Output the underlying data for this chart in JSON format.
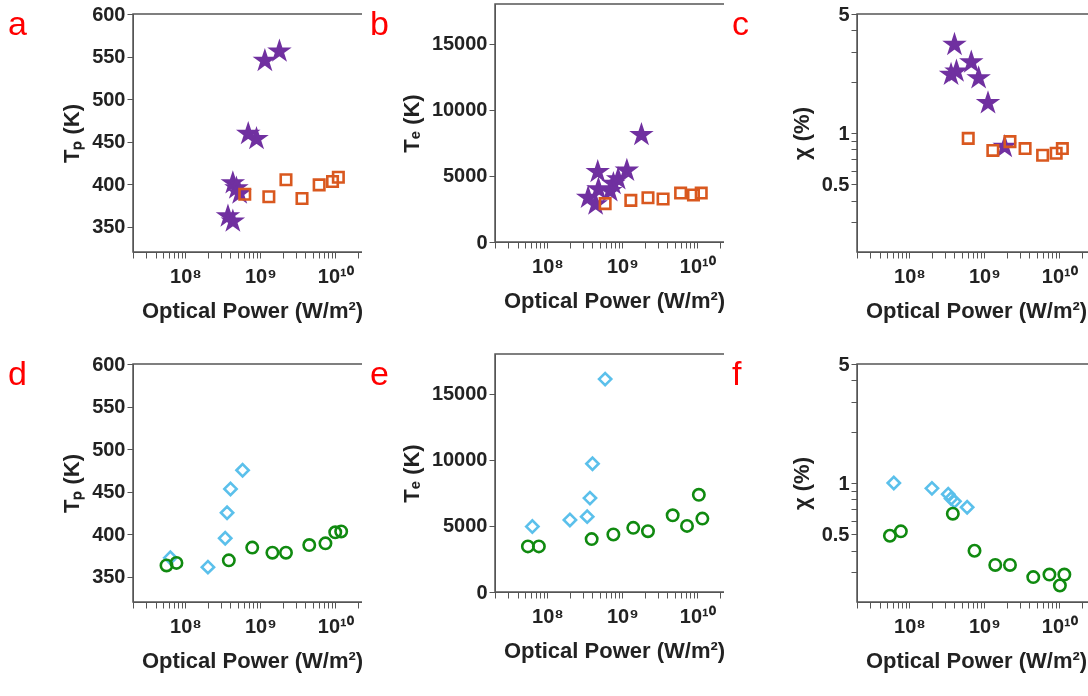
{
  "chart_data": [
    {
      "type": "scatter",
      "title": "a",
      "xlabel": "Optical Power (W/m²)",
      "ylabel": "Tₚ (K)",
      "log": "x",
      "xlim": [
        20000000.0,
        30000000000.0
      ],
      "xticks": [
        {
          "value": 20000000.0,
          "label": null
        },
        {
          "value": 30000000.0,
          "label": null
        },
        {
          "value": 40000000.0,
          "label": null
        },
        {
          "value": 50000000.0,
          "label": null
        },
        {
          "value": 60000000.0,
          "label": null
        },
        {
          "value": 70000000.0,
          "label": null
        },
        {
          "value": 80000000.0,
          "label": null
        },
        {
          "value": 90000000.0,
          "label": null
        },
        {
          "value": 100000000.0,
          "label": "10⁸"
        },
        {
          "value": 200000000.0,
          "label": null
        },
        {
          "value": 300000000.0,
          "label": null
        },
        {
          "value": 400000000.0,
          "label": null
        },
        {
          "value": 500000000.0,
          "label": null
        },
        {
          "value": 600000000.0,
          "label": null
        },
        {
          "value": 700000000.0,
          "label": null
        },
        {
          "value": 800000000.0,
          "label": null
        },
        {
          "value": 900000000.0,
          "label": null
        },
        {
          "value": 1000000000.0,
          "label": "10⁹"
        },
        {
          "value": 2000000000.0,
          "label": null
        },
        {
          "value": 3000000000.0,
          "label": null
        },
        {
          "value": 4000000000.0,
          "label": null
        },
        {
          "value": 5000000000.0,
          "label": null
        },
        {
          "value": 6000000000.0,
          "label": null
        },
        {
          "value": 7000000000.0,
          "label": null
        },
        {
          "value": 8000000000.0,
          "label": null
        },
        {
          "value": 9000000000.0,
          "label": null
        },
        {
          "value": 10000000000.0,
          "label": "10¹⁰"
        },
        {
          "value": 20000000000.0,
          "label": null
        },
        {
          "value": 30000000000.0,
          "label": null
        }
      ],
      "ylim": [
        320,
        600
      ],
      "yticks": [
        350,
        400,
        450,
        500,
        550,
        600
      ],
      "series": [
        {
          "color": "#7030a0",
          "marker": "star",
          "x": [
            1150000000.0,
            1800000000.0,
            690000000.0,
            890000000.0,
            430000000.0,
            480000000.0,
            530000000.0,
            370000000.0,
            430000000.0
          ],
          "values": [
            545,
            556,
            459,
            453,
            401,
            395,
            389,
            362,
            356
          ]
        },
        {
          "color": "#d9581f",
          "marker": "square",
          "x": [
            620000000.0,
            1300000000.0,
            2200000000.0,
            3600000000.0,
            6100000000.0,
            9200000000.0,
            11000000000.0
          ],
          "values": [
            388,
            385,
            405,
            383,
            399,
            403,
            408
          ]
        }
      ]
    },
    {
      "type": "scatter",
      "title": "b",
      "xlabel": "Optical Power (W/m²)",
      "ylabel": "Tₑ (K)",
      "log": "x",
      "xlim": [
        20000000.0,
        30000000000.0
      ],
      "xticks": [
        {
          "value": 20000000.0,
          "label": null
        },
        {
          "value": 30000000.0,
          "label": null
        },
        {
          "value": 40000000.0,
          "label": null
        },
        {
          "value": 50000000.0,
          "label": null
        },
        {
          "value": 60000000.0,
          "label": null
        },
        {
          "value": 70000000.0,
          "label": null
        },
        {
          "value": 80000000.0,
          "label": null
        },
        {
          "value": 90000000.0,
          "label": null
        },
        {
          "value": 100000000.0,
          "label": "10⁸"
        },
        {
          "value": 200000000.0,
          "label": null
        },
        {
          "value": 300000000.0,
          "label": null
        },
        {
          "value": 400000000.0,
          "label": null
        },
        {
          "value": 500000000.0,
          "label": null
        },
        {
          "value": 600000000.0,
          "label": null
        },
        {
          "value": 700000000.0,
          "label": null
        },
        {
          "value": 800000000.0,
          "label": null
        },
        {
          "value": 900000000.0,
          "label": null
        },
        {
          "value": 1000000000.0,
          "label": "10⁹"
        },
        {
          "value": 2000000000.0,
          "label": null
        },
        {
          "value": 3000000000.0,
          "label": null
        },
        {
          "value": 4000000000.0,
          "label": null
        },
        {
          "value": 5000000000.0,
          "label": null
        },
        {
          "value": 6000000000.0,
          "label": null
        },
        {
          "value": 7000000000.0,
          "label": null
        },
        {
          "value": 8000000000.0,
          "label": null
        },
        {
          "value": 9000000000.0,
          "label": null
        },
        {
          "value": 10000000000.0,
          "label": "10¹⁰"
        },
        {
          "value": 20000000000.0,
          "label": null
        },
        {
          "value": 30000000000.0,
          "label": null
        }
      ],
      "ylim": [
        0,
        18000
      ],
      "yticks": [
        0,
        5000,
        10000,
        15000
      ],
      "series": [
        {
          "color": "#7030a0",
          "marker": "star",
          "x": [
            1800000000.0,
            470000000.0,
            1150000000.0,
            880000000.0,
            760000000.0,
            690000000.0,
            480000000.0,
            350000000.0,
            440000000.0
          ],
          "values": [
            8100,
            5300,
            5400,
            4750,
            4400,
            3850,
            4000,
            3350,
            2850
          ]
        },
        {
          "color": "#d9581f",
          "marker": "square",
          "x": [
            590000000.0,
            1300000000.0,
            2200000000.0,
            3500000000.0,
            6000000000.0,
            8900000000.0,
            11300000000.0
          ],
          "values": [
            2900,
            3150,
            3350,
            3250,
            3700,
            3550,
            3700
          ]
        }
      ]
    },
    {
      "type": "scatter",
      "title": "c",
      "xlabel": "Optical Power (W/m²)",
      "ylabel": "χ (%)",
      "log": "xy",
      "xlim": [
        20000000.0,
        30000000000.0
      ],
      "xticks": [
        {
          "value": 20000000.0,
          "label": null
        },
        {
          "value": 30000000.0,
          "label": null
        },
        {
          "value": 40000000.0,
          "label": null
        },
        {
          "value": 50000000.0,
          "label": null
        },
        {
          "value": 60000000.0,
          "label": null
        },
        {
          "value": 70000000.0,
          "label": null
        },
        {
          "value": 80000000.0,
          "label": null
        },
        {
          "value": 90000000.0,
          "label": null
        },
        {
          "value": 100000000.0,
          "label": "10⁸"
        },
        {
          "value": 200000000.0,
          "label": null
        },
        {
          "value": 300000000.0,
          "label": null
        },
        {
          "value": 400000000.0,
          "label": null
        },
        {
          "value": 500000000.0,
          "label": null
        },
        {
          "value": 600000000.0,
          "label": null
        },
        {
          "value": 700000000.0,
          "label": null
        },
        {
          "value": 800000000.0,
          "label": null
        },
        {
          "value": 900000000.0,
          "label": null
        },
        {
          "value": 1000000000.0,
          "label": "10⁹"
        },
        {
          "value": 2000000000.0,
          "label": null
        },
        {
          "value": 3000000000.0,
          "label": null
        },
        {
          "value": 4000000000.0,
          "label": null
        },
        {
          "value": 5000000000.0,
          "label": null
        },
        {
          "value": 6000000000.0,
          "label": null
        },
        {
          "value": 7000000000.0,
          "label": null
        },
        {
          "value": 8000000000.0,
          "label": null
        },
        {
          "value": 9000000000.0,
          "label": null
        },
        {
          "value": 10000000000.0,
          "label": "10¹⁰"
        },
        {
          "value": 20000000000.0,
          "label": null
        },
        {
          "value": 30000000000.0,
          "label": null
        }
      ],
      "ylim": [
        0.2,
        5
      ],
      "yticks": [
        {
          "value": 0.3,
          "label": null
        },
        {
          "value": 0.4,
          "label": null
        },
        0.5,
        {
          "value": 0.6,
          "label": null
        },
        {
          "value": 0.7,
          "label": null
        },
        {
          "value": 0.8,
          "label": null
        },
        {
          "value": 0.9,
          "label": null
        },
        1,
        {
          "value": 2,
          "label": null
        },
        {
          "value": 3,
          "label": null
        },
        {
          "value": 4,
          "label": null
        },
        5
      ],
      "series": [
        {
          "color": "#7030a0",
          "marker": "star",
          "x": [
            400000000.0,
            360000000.0,
            670000000.0,
            840000000.0,
            1120000000.0,
            1870000000.0,
            425000000.0
          ],
          "values": [
            3.3,
            2.2,
            2.6,
            2.1,
            1.5,
            0.83,
            2.3
          ]
        },
        {
          "color": "#d9581f",
          "marker": "square",
          "x": [
            610000000.0,
            1300000000.0,
            2200000000.0,
            3500000000.0,
            6000000000.0,
            9100000000.0,
            11000000000.0
          ],
          "values": [
            0.93,
            0.79,
            0.89,
            0.81,
            0.74,
            0.76,
            0.81
          ]
        }
      ]
    },
    {
      "type": "scatter",
      "title": "d",
      "xlabel": "Optical Power (W/m²)",
      "ylabel": "Tₚ (K)",
      "log": "x",
      "xlim": [
        20000000.0,
        30000000000.0
      ],
      "xticks": [
        {
          "value": 20000000.0,
          "label": null
        },
        {
          "value": 30000000.0,
          "label": null
        },
        {
          "value": 40000000.0,
          "label": null
        },
        {
          "value": 50000000.0,
          "label": null
        },
        {
          "value": 60000000.0,
          "label": null
        },
        {
          "value": 70000000.0,
          "label": null
        },
        {
          "value": 80000000.0,
          "label": null
        },
        {
          "value": 90000000.0,
          "label": null
        },
        {
          "value": 100000000.0,
          "label": "10⁸"
        },
        {
          "value": 200000000.0,
          "label": null
        },
        {
          "value": 300000000.0,
          "label": null
        },
        {
          "value": 400000000.0,
          "label": null
        },
        {
          "value": 500000000.0,
          "label": null
        },
        {
          "value": 600000000.0,
          "label": null
        },
        {
          "value": 700000000.0,
          "label": null
        },
        {
          "value": 800000000.0,
          "label": null
        },
        {
          "value": 900000000.0,
          "label": null
        },
        {
          "value": 1000000000.0,
          "label": "10⁹"
        },
        {
          "value": 2000000000.0,
          "label": null
        },
        {
          "value": 3000000000.0,
          "label": null
        },
        {
          "value": 4000000000.0,
          "label": null
        },
        {
          "value": 5000000000.0,
          "label": null
        },
        {
          "value": 6000000000.0,
          "label": null
        },
        {
          "value": 7000000000.0,
          "label": null
        },
        {
          "value": 8000000000.0,
          "label": null
        },
        {
          "value": 9000000000.0,
          "label": null
        },
        {
          "value": 10000000000.0,
          "label": "10¹⁰"
        },
        {
          "value": 20000000000.0,
          "label": null
        },
        {
          "value": 30000000000.0,
          "label": null
        }
      ],
      "ylim": [
        320,
        600
      ],
      "yticks": [
        350,
        400,
        450,
        500,
        550,
        600
      ],
      "series": [
        {
          "color": "#5bc0eb",
          "marker": "diamond",
          "x": [
            63000000.0,
            200000000.0,
            340000000.0,
            360000000.0,
            400000000.0,
            580000000.0
          ],
          "values": [
            372,
            361,
            395,
            425,
            453,
            475
          ]
        },
        {
          "color": "#108a10",
          "marker": "circle",
          "x": [
            56000000.0,
            76000000.0,
            380000000.0,
            780000000.0,
            1450000000.0,
            2200000000.0,
            4500000000.0,
            7400000000.0,
            10000000000.0,
            12000000000.0
          ],
          "values": [
            363,
            366,
            369,
            384,
            378,
            378,
            387,
            389,
            402,
            403
          ]
        }
      ]
    },
    {
      "type": "scatter",
      "title": "e",
      "xlabel": "Optical Power (W/m²)",
      "ylabel": "Tₑ (K)",
      "log": "x",
      "xlim": [
        20000000.0,
        30000000000.0
      ],
      "xticks": [
        {
          "value": 20000000.0,
          "label": null
        },
        {
          "value": 30000000.0,
          "label": null
        },
        {
          "value": 40000000.0,
          "label": null
        },
        {
          "value": 50000000.0,
          "label": null
        },
        {
          "value": 60000000.0,
          "label": null
        },
        {
          "value": 70000000.0,
          "label": null
        },
        {
          "value": 80000000.0,
          "label": null
        },
        {
          "value": 90000000.0,
          "label": null
        },
        {
          "value": 100000000.0,
          "label": "10⁸"
        },
        {
          "value": 200000000.0,
          "label": null
        },
        {
          "value": 300000000.0,
          "label": null
        },
        {
          "value": 400000000.0,
          "label": null
        },
        {
          "value": 500000000.0,
          "label": null
        },
        {
          "value": 600000000.0,
          "label": null
        },
        {
          "value": 700000000.0,
          "label": null
        },
        {
          "value": 800000000.0,
          "label": null
        },
        {
          "value": 900000000.0,
          "label": null
        },
        {
          "value": 1000000000.0,
          "label": "10⁹"
        },
        {
          "value": 2000000000.0,
          "label": null
        },
        {
          "value": 3000000000.0,
          "label": null
        },
        {
          "value": 4000000000.0,
          "label": null
        },
        {
          "value": 5000000000.0,
          "label": null
        },
        {
          "value": 6000000000.0,
          "label": null
        },
        {
          "value": 7000000000.0,
          "label": null
        },
        {
          "value": 8000000000.0,
          "label": null
        },
        {
          "value": 9000000000.0,
          "label": null
        },
        {
          "value": 10000000000.0,
          "label": "10¹⁰"
        },
        {
          "value": 20000000000.0,
          "label": null
        },
        {
          "value": 30000000000.0,
          "label": null
        }
      ],
      "ylim": [
        0,
        18000
      ],
      "yticks": [
        0,
        5000,
        10000,
        15000
      ],
      "series": [
        {
          "color": "#5bc0eb",
          "marker": "diamond",
          "x": [
            63000000.0,
            200000000.0,
            340000000.0,
            370000000.0,
            400000000.0,
            590000000.0
          ],
          "values": [
            4950,
            5450,
            5700,
            7100,
            9700,
            16100
          ]
        },
        {
          "color": "#108a10",
          "marker": "circle",
          "x": [
            55000000.0,
            77000000.0,
            390000000.0,
            760000000.0,
            1400000000.0,
            2200000000.0,
            4700000000.0,
            7300000000.0,
            10500000000.0,
            11700000000.0
          ],
          "values": [
            3450,
            3450,
            4000,
            4350,
            4850,
            4600,
            5800,
            5000,
            7350,
            5550
          ]
        }
      ]
    },
    {
      "type": "scatter",
      "title": "f",
      "xlabel": "Optical Power (W/m²)",
      "ylabel": "χ (%)",
      "log": "xy",
      "xlim": [
        20000000.0,
        30000000000.0
      ],
      "xticks": [
        {
          "value": 20000000.0,
          "label": null
        },
        {
          "value": 30000000.0,
          "label": null
        },
        {
          "value": 40000000.0,
          "label": null
        },
        {
          "value": 50000000.0,
          "label": null
        },
        {
          "value": 60000000.0,
          "label": null
        },
        {
          "value": 70000000.0,
          "label": null
        },
        {
          "value": 80000000.0,
          "label": null
        },
        {
          "value": 90000000.0,
          "label": null
        },
        {
          "value": 100000000.0,
          "label": "10⁸"
        },
        {
          "value": 200000000.0,
          "label": null
        },
        {
          "value": 300000000.0,
          "label": null
        },
        {
          "value": 400000000.0,
          "label": null
        },
        {
          "value": 500000000.0,
          "label": null
        },
        {
          "value": 600000000.0,
          "label": null
        },
        {
          "value": 700000000.0,
          "label": null
        },
        {
          "value": 800000000.0,
          "label": null
        },
        {
          "value": 900000000.0,
          "label": null
        },
        {
          "value": 1000000000.0,
          "label": "10⁹"
        },
        {
          "value": 2000000000.0,
          "label": null
        },
        {
          "value": 3000000000.0,
          "label": null
        },
        {
          "value": 4000000000.0,
          "label": null
        },
        {
          "value": 5000000000.0,
          "label": null
        },
        {
          "value": 6000000000.0,
          "label": null
        },
        {
          "value": 7000000000.0,
          "label": null
        },
        {
          "value": 8000000000.0,
          "label": null
        },
        {
          "value": 9000000000.0,
          "label": null
        },
        {
          "value": 10000000000.0,
          "label": "10¹⁰"
        },
        {
          "value": 20000000000.0,
          "label": null
        },
        {
          "value": 30000000000.0,
          "label": null
        }
      ],
      "ylim": [
        0.2,
        5
      ],
      "yticks": [
        {
          "value": 0.3,
          "label": null
        },
        {
          "value": 0.4,
          "label": null
        },
        0.5,
        {
          "value": 0.6,
          "label": null
        },
        {
          "value": 0.7,
          "label": null
        },
        {
          "value": 0.8,
          "label": null
        },
        {
          "value": 0.9,
          "label": null
        },
        1,
        {
          "value": 2,
          "label": null
        },
        {
          "value": 3,
          "label": null
        },
        {
          "value": 4,
          "label": null
        },
        5
      ],
      "series": [
        {
          "color": "#5bc0eb",
          "marker": "diamond",
          "x": [
            62000000.0,
            200000000.0,
            330000000.0,
            360000000.0,
            400000000.0,
            590000000.0
          ],
          "values": [
            1.0,
            0.93,
            0.86,
            0.81,
            0.78,
            0.72
          ]
        },
        {
          "color": "#108a10",
          "marker": "circle",
          "x": [
            55000000.0,
            77000000.0,
            380000000.0,
            740000000.0,
            1400000000.0,
            2200000000.0,
            4500000000.0,
            7400000000.0,
            11700000000.0,
            10200000000.0
          ],
          "values": [
            0.49,
            0.52,
            0.66,
            0.4,
            0.33,
            0.33,
            0.28,
            0.29,
            0.29,
            0.25
          ]
        }
      ]
    }
  ]
}
